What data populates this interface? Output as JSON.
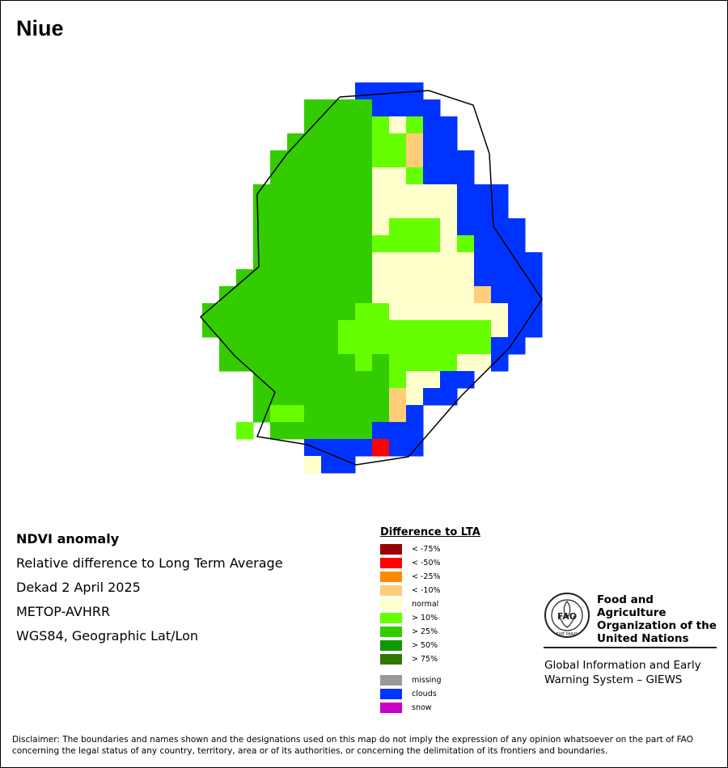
{
  "title": "Niue",
  "info": {
    "line1": "NDVI anomaly",
    "line2": "Relative difference to Long Term Average",
    "line3": "Dekad 2 April 2025",
    "line4": "METOP-AVHRR",
    "line5": "WGS84, Geographic Lat/Lon"
  },
  "legend": {
    "title": "Difference to LTA",
    "items": [
      {
        "label": "< -75%",
        "color": "#990000"
      },
      {
        "label": "< -50%",
        "color": "#ff0000"
      },
      {
        "label": "< -25%",
        "color": "#ff8800"
      },
      {
        "label": "< -10%",
        "color": "#ffcc77"
      },
      {
        "label": "normal",
        "color": "#ffffcc"
      },
      {
        "label": "> 10%",
        "color": "#66ff00"
      },
      {
        "label": "> 25%",
        "color": "#33cc00"
      },
      {
        "label": "> 50%",
        "color": "#119900"
      },
      {
        "label": "> 75%",
        "color": "#337700"
      }
    ],
    "extra": [
      {
        "label": "missing",
        "color": "#999999"
      },
      {
        "label": "clouds",
        "color": "#0033ff"
      },
      {
        "label": "snow",
        "color": "#cc00cc"
      }
    ]
  },
  "org": {
    "name_line1": "Food and Agriculture",
    "name_line2": "Organization of the",
    "name_line3": "United Nations",
    "logo_text": "FAO",
    "logo_motto": "FIAT PANIS",
    "giews_line1": "Global Information and Early",
    "giews_line2": "Warning System – GIEWS"
  },
  "disclaimer_line1": "Disclaimer: The boundaries and names shown and the designations used on this map do not imply the expression of any opinion whatsoever on the part of FAO",
  "disclaimer_line2": "concerning the legal status of any country, territory, area or of its authorities, or concerning the delimitation of its frontiers and boundaries.",
  "grid_codes": {
    "G": "> 25%",
    "L": "> 10%",
    "N": "normal",
    "O": "< -10%",
    "R": "< -50%",
    "B": "clouds"
  },
  "grid": [
    ".........BBBB...",
    "......GGGGBBBB..",
    "......GGGGLNLBB.",
    ".....GGGGGLLOBB.",
    "....GGGGGGLLOBBB",
    "....GGGGGGNNLBBB",
    "...GGGGGGGNNNNNBBB",
    "...GGGGGGGNNNNNBBB",
    "...GGGGGGGNLLLNBBBB",
    "...GGGGGGGLLLLNLBBB",
    "...GGGGGGGNNNNNNBBBB",
    "..GGGGGGGGNNNNNNBBBB",
    ".GGGGGGGGGNNNNNNOBBB",
    "GGGGGGGGGLLNNNNNNNBB",
    "GGGGGGGGLLLLLLLLLNBB",
    ".GGGGGGGLLLLLLLLLBB",
    ".GGGGGGGGLGLLLLNNB",
    "...GGGGGGGGLNNBB",
    "...GGGGGGGGONBB",
    "...GLLGGGGGOB",
    "..L.GGGGGGBBB",
    "......BBBBRBB",
    "......NBB"
  ]
}
